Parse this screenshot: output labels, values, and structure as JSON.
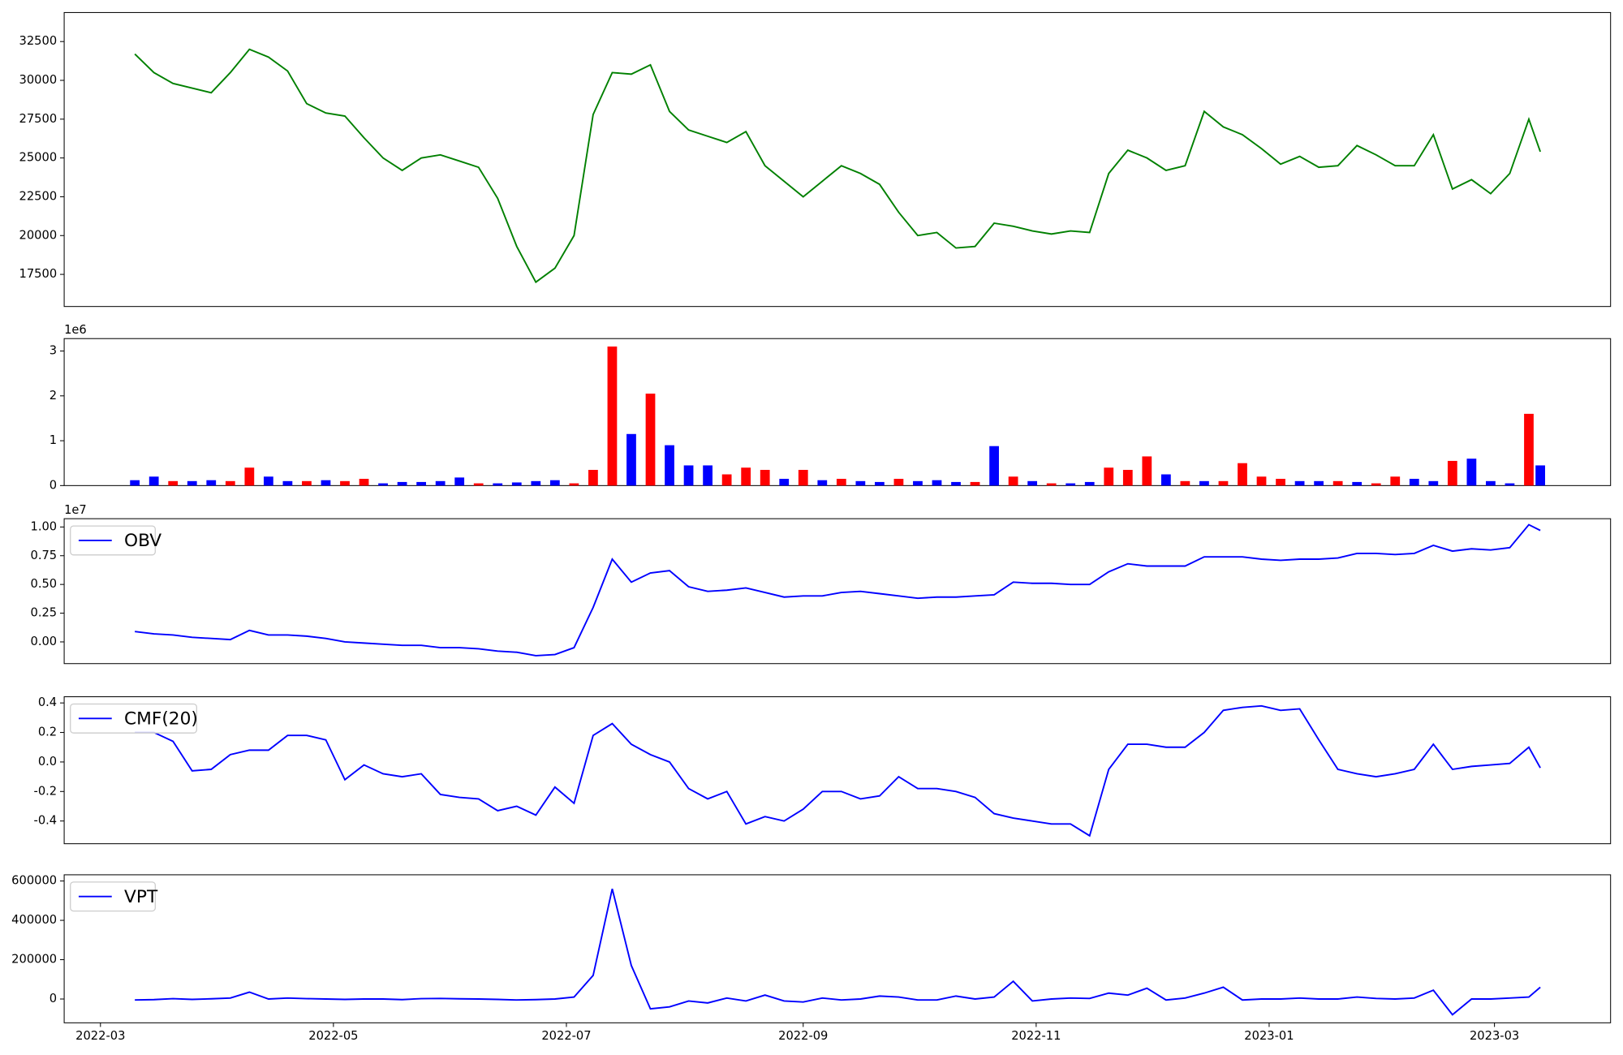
{
  "chart_data": [
    {
      "type": "line",
      "color": "#008000",
      "x": [
        9,
        14,
        19,
        24,
        29,
        34,
        39,
        44,
        49,
        54,
        59,
        64,
        69,
        74,
        79,
        84,
        89,
        94,
        99,
        104,
        109,
        114,
        119,
        124,
        129,
        134,
        139,
        144,
        149,
        154,
        159,
        164,
        169,
        174,
        179,
        184,
        189,
        194,
        199,
        204,
        209,
        214,
        219,
        224,
        229,
        234,
        239,
        244,
        249,
        254,
        259,
        264,
        269,
        274,
        279,
        284,
        289,
        294,
        299,
        304,
        309,
        314,
        319,
        324,
        329,
        334,
        339,
        344,
        349,
        354,
        359,
        364,
        369,
        374,
        377
      ],
      "values": [
        31700,
        30500,
        29800,
        29500,
        29200,
        30500,
        32000,
        31500,
        30600,
        28500,
        27900,
        27700,
        26300,
        25000,
        24200,
        25000,
        25200,
        24800,
        24400,
        22400,
        19300,
        17000,
        17900,
        20000,
        27800,
        30500,
        30400,
        31000,
        28000,
        26800,
        26400,
        26000,
        26700,
        24500,
        23500,
        22500,
        23500,
        24500,
        24000,
        23300,
        21500,
        20000,
        20200,
        19200,
        19300,
        20800,
        20600,
        20300,
        20100,
        20300,
        20200,
        24000,
        25500,
        25000,
        24200,
        24500,
        28000,
        27000,
        26500,
        25600,
        24600,
        25100,
        24400,
        24500,
        25800,
        25200,
        24500,
        24500,
        26500,
        23000,
        23600,
        22700,
        24000,
        27500,
        25400
      ],
      "xlim": [
        -9.5,
        395.4
      ],
      "ylim": [
        15430,
        34370
      ],
      "yticks": [
        17500,
        20000,
        22500,
        25000,
        27500,
        30000,
        32500
      ]
    },
    {
      "type": "bar",
      "y_offset_label": "1e6",
      "x": [
        9,
        14,
        19,
        24,
        29,
        34,
        39,
        44,
        49,
        54,
        59,
        64,
        69,
        74,
        79,
        84,
        89,
        94,
        99,
        104,
        109,
        114,
        119,
        124,
        129,
        134,
        139,
        144,
        149,
        154,
        159,
        164,
        169,
        174,
        179,
        184,
        189,
        194,
        199,
        204,
        209,
        214,
        219,
        224,
        229,
        234,
        239,
        244,
        249,
        254,
        259,
        264,
        269,
        274,
        279,
        284,
        289,
        294,
        299,
        304,
        309,
        314,
        319,
        324,
        329,
        334,
        339,
        344,
        349,
        354,
        359,
        364,
        369,
        374,
        377
      ],
      "values": [
        120000,
        200000,
        100000,
        100000,
        120000,
        100000,
        400000,
        200000,
        100000,
        100000,
        120000,
        100000,
        150000,
        50000,
        80000,
        80000,
        100000,
        180000,
        50000,
        50000,
        70000,
        100000,
        120000,
        50000,
        350000,
        3100000,
        1150000,
        2050000,
        900000,
        450000,
        450000,
        250000,
        400000,
        350000,
        150000,
        350000,
        120000,
        150000,
        100000,
        80000,
        150000,
        100000,
        120000,
        80000,
        80000,
        880000,
        200000,
        100000,
        50000,
        50000,
        80000,
        400000,
        350000,
        650000,
        250000,
        100000,
        100000,
        100000,
        500000,
        200000,
        150000,
        100000,
        100000,
        100000,
        80000,
        50000,
        200000,
        150000,
        100000,
        550000,
        600000,
        100000,
        50000,
        1600000,
        450000
      ],
      "colors": [
        "blue",
        "blue",
        "red",
        "blue",
        "blue",
        "red",
        "red",
        "blue",
        "blue",
        "red",
        "blue",
        "red",
        "red",
        "blue",
        "blue",
        "blue",
        "blue",
        "blue",
        "red",
        "blue",
        "blue",
        "blue",
        "blue",
        "red",
        "red",
        "red",
        "blue",
        "red",
        "blue",
        "blue",
        "blue",
        "red",
        "red",
        "red",
        "blue",
        "red",
        "blue",
        "red",
        "blue",
        "blue",
        "red",
        "blue",
        "blue",
        "blue",
        "red",
        "blue",
        "red",
        "blue",
        "red",
        "blue",
        "blue",
        "red",
        "red",
        "red",
        "blue",
        "red",
        "blue",
        "red",
        "red",
        "red",
        "red",
        "blue",
        "blue",
        "red",
        "blue",
        "red",
        "red",
        "blue",
        "blue",
        "red",
        "blue",
        "blue",
        "blue",
        "red",
        "blue"
      ],
      "xlim": [
        -9.5,
        395.4
      ],
      "ylim": [
        0,
        3277000
      ],
      "yticks": [
        {
          "value": 0,
          "label": "0"
        },
        {
          "value": 1000000,
          "label": "1"
        },
        {
          "value": 2000000,
          "label": "2"
        },
        {
          "value": 3000000,
          "label": "3"
        }
      ]
    },
    {
      "type": "line",
      "y_offset_label": "1e7",
      "legend": "upper left",
      "x": [
        9,
        14,
        19,
        24,
        29,
        34,
        39,
        44,
        49,
        54,
        59,
        64,
        69,
        74,
        79,
        84,
        89,
        94,
        99,
        104,
        109,
        114,
        119,
        124,
        129,
        134,
        139,
        144,
        149,
        154,
        159,
        164,
        169,
        174,
        179,
        184,
        189,
        194,
        199,
        204,
        209,
        214,
        219,
        224,
        229,
        234,
        239,
        244,
        249,
        254,
        259,
        264,
        269,
        274,
        279,
        284,
        289,
        294,
        299,
        304,
        309,
        314,
        319,
        324,
        329,
        334,
        339,
        344,
        349,
        354,
        359,
        364,
        369,
        374,
        377
      ],
      "series": [
        {
          "name": "OBV",
          "color": "#0000ff",
          "values": [
            900000,
            700000,
            600000,
            400000,
            300000,
            200000,
            1000000,
            600000,
            600000,
            500000,
            300000,
            0,
            -100000,
            -200000,
            -300000,
            -300000,
            -500000,
            -500000,
            -600000,
            -800000,
            -900000,
            -1200000,
            -1100000,
            -500000,
            3000000,
            7200000,
            5200000,
            6000000,
            6200000,
            4800000,
            4400000,
            4500000,
            4700000,
            4300000,
            3900000,
            4000000,
            4000000,
            4300000,
            4400000,
            4200000,
            4000000,
            3800000,
            3900000,
            3900000,
            4000000,
            4100000,
            5200000,
            5100000,
            5100000,
            5000000,
            5000000,
            6100000,
            6800000,
            6600000,
            6600000,
            6600000,
            7400000,
            7400000,
            7400000,
            7200000,
            7100000,
            7200000,
            7200000,
            7300000,
            7700000,
            7700000,
            7600000,
            7700000,
            8400000,
            7900000,
            8100000,
            8000000,
            8200000,
            10200000,
            9700000
          ]
        }
      ],
      "xlim": [
        -9.5,
        395.4
      ],
      "ylim": [
        -1890000,
        10720000
      ],
      "yticks": [
        {
          "value": 0,
          "label": "0.00"
        },
        {
          "value": 2500000,
          "label": "0.25"
        },
        {
          "value": 5000000,
          "label": "0.50"
        },
        {
          "value": 7500000,
          "label": "0.75"
        },
        {
          "value": 10000000,
          "label": "1.00"
        }
      ]
    },
    {
      "type": "line",
      "legend": "upper left",
      "x": [
        9,
        14,
        19,
        24,
        29,
        34,
        39,
        44,
        49,
        54,
        59,
        64,
        69,
        74,
        79,
        84,
        89,
        94,
        99,
        104,
        109,
        114,
        119,
        124,
        129,
        134,
        139,
        144,
        149,
        154,
        159,
        164,
        169,
        174,
        179,
        184,
        189,
        194,
        199,
        204,
        209,
        214,
        219,
        224,
        229,
        234,
        239,
        244,
        249,
        254,
        259,
        264,
        269,
        274,
        279,
        284,
        289,
        294,
        299,
        304,
        309,
        314,
        319,
        324,
        329,
        334,
        339,
        344,
        349,
        354,
        359,
        364,
        369,
        374,
        377
      ],
      "series": [
        {
          "name": "CMF(20)",
          "color": "#0000ff",
          "values": [
            0.2,
            0.2,
            0.14,
            -0.06,
            -0.05,
            0.05,
            0.08,
            0.08,
            0.18,
            0.18,
            0.15,
            -0.12,
            -0.02,
            -0.08,
            -0.1,
            -0.08,
            -0.22,
            -0.24,
            -0.25,
            -0.33,
            -0.3,
            -0.36,
            -0.17,
            -0.28,
            0.18,
            0.26,
            0.12,
            0.05,
            0.0,
            -0.18,
            -0.25,
            -0.2,
            -0.42,
            -0.37,
            -0.4,
            -0.32,
            -0.2,
            -0.2,
            -0.25,
            -0.23,
            -0.1,
            -0.18,
            -0.18,
            -0.2,
            -0.24,
            -0.35,
            -0.38,
            -0.4,
            -0.42,
            -0.42,
            -0.5,
            -0.05,
            0.12,
            0.12,
            0.1,
            0.1,
            0.2,
            0.35,
            0.37,
            0.38,
            0.35,
            0.36,
            0.15,
            -0.05,
            -0.08,
            -0.1,
            -0.08,
            -0.05,
            0.12,
            -0.05,
            -0.03,
            -0.02,
            -0.01,
            0.1,
            -0.04
          ]
        }
      ],
      "xlim": [
        -9.5,
        395.4
      ],
      "ylim": [
        -0.554,
        0.442
      ],
      "yticks": [
        -0.4,
        -0.2,
        {
          "value": 0,
          "label": "0.0"
        },
        0.2,
        0.4
      ]
    },
    {
      "type": "line",
      "legend": "upper left",
      "x": [
        9,
        14,
        19,
        24,
        29,
        34,
        39,
        44,
        49,
        54,
        59,
        64,
        69,
        74,
        79,
        84,
        89,
        94,
        99,
        104,
        109,
        114,
        119,
        124,
        129,
        134,
        139,
        144,
        149,
        154,
        159,
        164,
        169,
        174,
        179,
        184,
        189,
        194,
        199,
        204,
        209,
        214,
        219,
        224,
        229,
        234,
        239,
        244,
        249,
        254,
        259,
        264,
        269,
        274,
        279,
        284,
        289,
        294,
        299,
        304,
        309,
        314,
        319,
        324,
        329,
        334,
        339,
        344,
        349,
        354,
        359,
        364,
        369,
        374,
        377
      ],
      "series": [
        {
          "name": "VPT",
          "color": "#0000ff",
          "values": [
            -5000,
            -3000,
            2000,
            -2000,
            1000,
            5000,
            35000,
            0,
            5000,
            2000,
            0,
            -2000,
            0,
            0,
            -3000,
            2000,
            3000,
            1000,
            0,
            -2000,
            -5000,
            -3000,
            0,
            10000,
            120000,
            560000,
            170000,
            -50000,
            -40000,
            -10000,
            -20000,
            5000,
            -10000,
            20000,
            -10000,
            -15000,
            5000,
            -5000,
            0,
            15000,
            10000,
            -5000,
            -5000,
            15000,
            0,
            10000,
            90000,
            -10000,
            0,
            5000,
            3000,
            30000,
            20000,
            55000,
            -5000,
            5000,
            30000,
            60000,
            -5000,
            0,
            0,
            5000,
            0,
            0,
            10000,
            3000,
            0,
            5000,
            45000,
            -80000,
            0,
            0,
            5000,
            10000,
            60000
          ]
        }
      ],
      "xlim": [
        -9.5,
        395.4
      ],
      "ylim": [
        -121000,
        631600
      ],
      "yticks": [
        0,
        200000,
        400000,
        600000
      ],
      "xticks": [
        {
          "value": 0,
          "label": "2022-03"
        },
        {
          "value": 61,
          "label": "2022-05"
        },
        {
          "value": 122,
          "label": "2022-07"
        },
        {
          "value": 184,
          "label": "2022-09"
        },
        {
          "value": 245,
          "label": "2022-11"
        },
        {
          "value": 306,
          "label": "2023-01"
        },
        {
          "value": 365,
          "label": "2023-03"
        }
      ]
    }
  ]
}
